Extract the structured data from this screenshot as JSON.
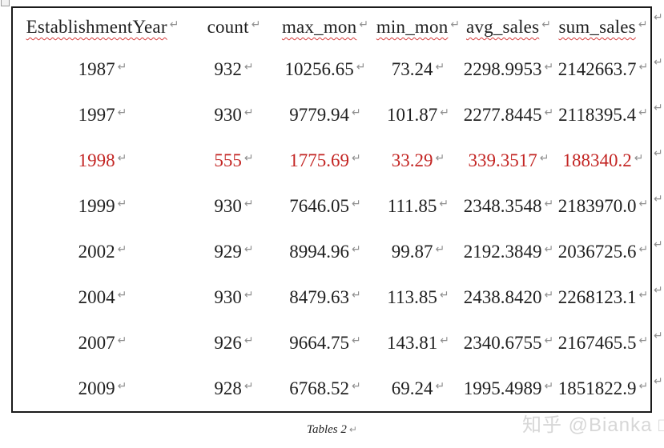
{
  "document": {
    "caption": "Tables 2",
    "watermark": "知乎 @Bianka □",
    "cell_mark": "↵",
    "row_end_mark": "↵"
  },
  "colors": {
    "text": "#1f1f1f",
    "highlight_row": "#c32523",
    "paragraph_mark": "#8f8f8f",
    "spellcheck_squiggle": "#d43a3a",
    "table_border": "#1b1b1b",
    "watermark": "#d7d7d7"
  },
  "table": {
    "headers": [
      {
        "label": "EstablishmentYear",
        "spellcheck": true
      },
      {
        "label": "count",
        "spellcheck": false
      },
      {
        "label": "max_mon",
        "spellcheck": true
      },
      {
        "label": "min_mon",
        "spellcheck": true
      },
      {
        "label": "avg_sales",
        "spellcheck": true
      },
      {
        "label": "sum_sales",
        "spellcheck": true
      }
    ],
    "rows": [
      {
        "highlight": false,
        "cells": [
          "1987",
          "932",
          "10256.65",
          "73.24",
          "2298.9953",
          "2142663.7"
        ]
      },
      {
        "highlight": false,
        "cells": [
          "1997",
          "930",
          "9779.94",
          "101.87",
          "2277.8445",
          "2118395.4"
        ]
      },
      {
        "highlight": true,
        "cells": [
          "1998",
          "555",
          "1775.69",
          "33.29",
          "339.3517",
          "188340.2"
        ]
      },
      {
        "highlight": false,
        "cells": [
          "1999",
          "930",
          "7646.05",
          "111.85",
          "2348.3548",
          "2183970.0"
        ]
      },
      {
        "highlight": false,
        "cells": [
          "2002",
          "929",
          "8994.96",
          "99.87",
          "2192.3849",
          "2036725.6"
        ]
      },
      {
        "highlight": false,
        "cells": [
          "2004",
          "930",
          "8479.63",
          "113.85",
          "2438.8420",
          "2268123.1"
        ]
      },
      {
        "highlight": false,
        "cells": [
          "2007",
          "926",
          "9664.75",
          "143.81",
          "2340.6755",
          "2167465.5"
        ]
      },
      {
        "highlight": false,
        "cells": [
          "2009",
          "928",
          "6768.52",
          "69.24",
          "1995.4989",
          "1851822.9"
        ]
      }
    ]
  }
}
